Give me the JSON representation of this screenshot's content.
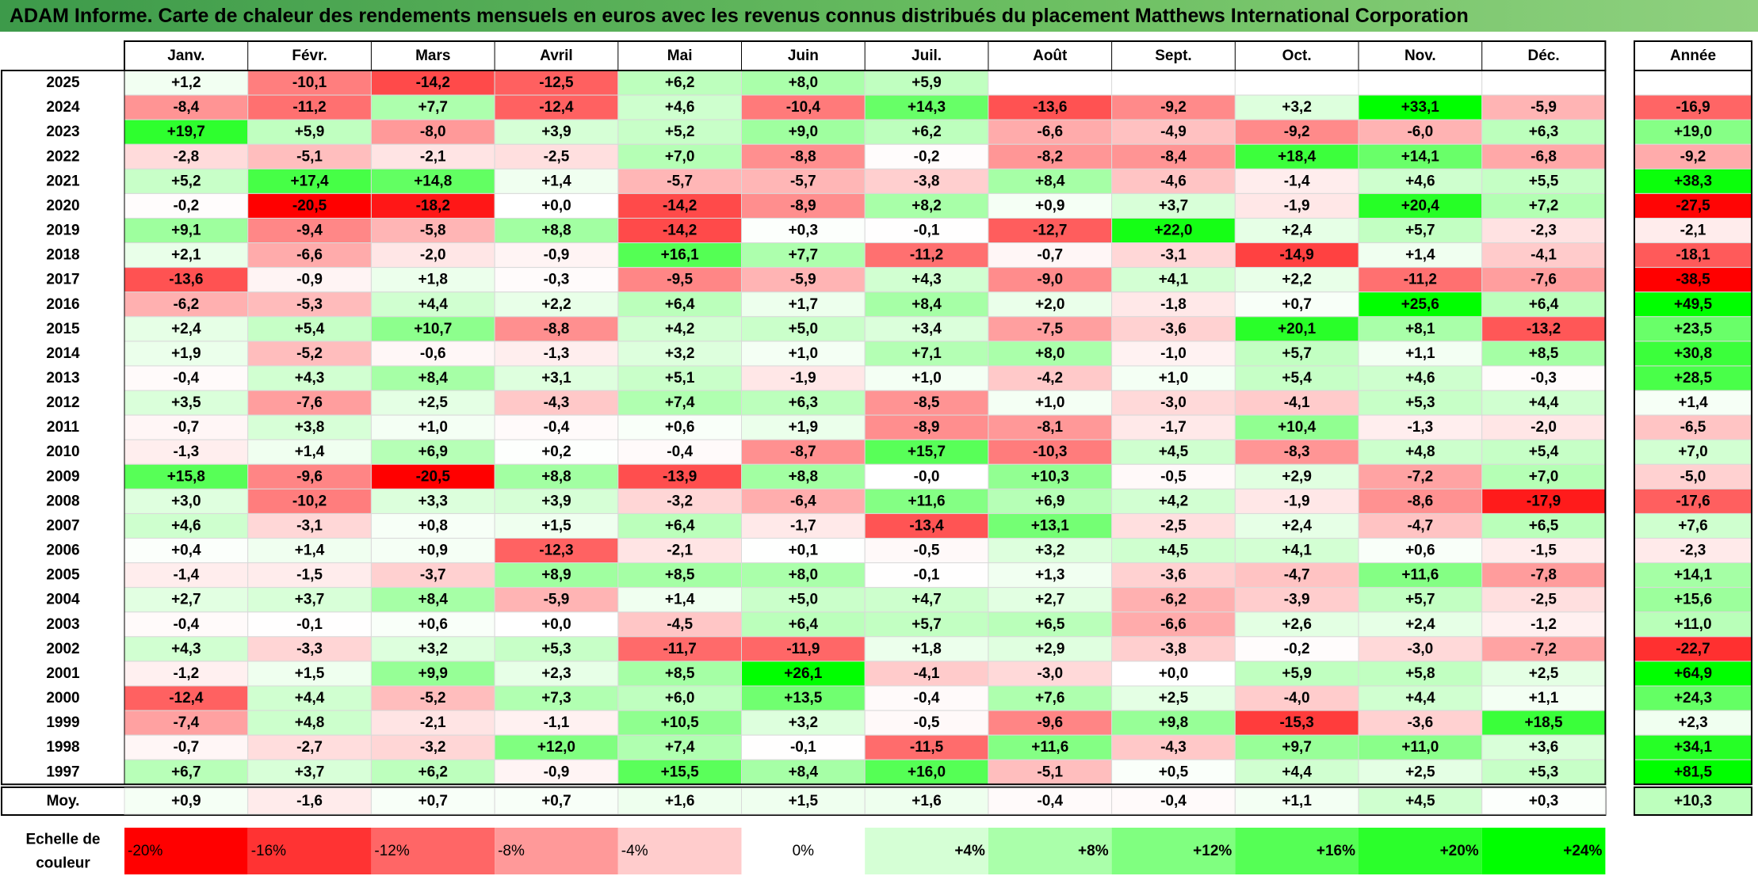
{
  "title": "ADAM Informe. Carte de chaleur des rendements mensuels en euros avec les revenus connus distribués du placement Matthews International Corporation",
  "colors": {
    "title_bar": "#6cbf62",
    "max_green": "#00ff00",
    "max_red": "#ff0000",
    "neutral": "#ffffff"
  },
  "chart_data": {
    "type": "heatmap",
    "columns": [
      "Janv.",
      "Févr.",
      "Mars",
      "Avril",
      "Mai",
      "Juin",
      "Juil.",
      "Août",
      "Sept.",
      "Oct.",
      "Nov.",
      "Déc."
    ],
    "year_column_label": "Année",
    "rows": [
      {
        "label": "2025",
        "values": [
          "+1,2",
          "-10,1",
          "-14,2",
          "-12,5",
          "+6,2",
          "+8,0",
          "+5,9",
          "",
          "",
          "",
          "",
          ""
        ],
        "year": ""
      },
      {
        "label": "2024",
        "values": [
          "-8,4",
          "-11,2",
          "+7,7",
          "-12,4",
          "+4,6",
          "-10,4",
          "+14,3",
          "-13,6",
          "-9,2",
          "+3,2",
          "+33,1",
          "-5,9"
        ],
        "year": "-16,9"
      },
      {
        "label": "2023",
        "values": [
          "+19,7",
          "+5,9",
          "-8,0",
          "+3,9",
          "+5,2",
          "+9,0",
          "+6,2",
          "-6,6",
          "-4,9",
          "-9,2",
          "-6,0",
          "+6,3"
        ],
        "year": "+19,0"
      },
      {
        "label": "2022",
        "values": [
          "-2,8",
          "-5,1",
          "-2,1",
          "-2,5",
          "+7,0",
          "-8,8",
          "-0,2",
          "-8,2",
          "-8,4",
          "+18,4",
          "+14,1",
          "-6,8"
        ],
        "year": "-9,2"
      },
      {
        "label": "2021",
        "values": [
          "+5,2",
          "+17,4",
          "+14,8",
          "+1,4",
          "-5,7",
          "-5,7",
          "-3,8",
          "+8,4",
          "-4,6",
          "-1,4",
          "+4,6",
          "+5,5"
        ],
        "year": "+38,3"
      },
      {
        "label": "2020",
        "values": [
          "-0,2",
          "-20,5",
          "-18,2",
          "+0,0",
          "-14,2",
          "-8,9",
          "+8,2",
          "+0,9",
          "+3,7",
          "-1,9",
          "+20,4",
          "+7,2"
        ],
        "year": "-27,5"
      },
      {
        "label": "2019",
        "values": [
          "+9,1",
          "-9,4",
          "-5,8",
          "+8,8",
          "-14,2",
          "+0,3",
          "-0,1",
          "-12,7",
          "+22,0",
          "+2,4",
          "+5,7",
          "-2,3"
        ],
        "year": "-2,1"
      },
      {
        "label": "2018",
        "values": [
          "+2,1",
          "-6,6",
          "-2,0",
          "-0,9",
          "+16,1",
          "+7,7",
          "-11,2",
          "-0,7",
          "-3,1",
          "-14,9",
          "+1,4",
          "-4,1"
        ],
        "year": "-18,1"
      },
      {
        "label": "2017",
        "values": [
          "-13,6",
          "-0,9",
          "+1,8",
          "-0,3",
          "-9,5",
          "-5,9",
          "+4,3",
          "-9,0",
          "+4,1",
          "+2,2",
          "-11,2",
          "-7,6"
        ],
        "year": "-38,5"
      },
      {
        "label": "2016",
        "values": [
          "-6,2",
          "-5,3",
          "+4,4",
          "+2,2",
          "+6,4",
          "+1,7",
          "+8,4",
          "+2,0",
          "-1,8",
          "+0,7",
          "+25,6",
          "+6,4"
        ],
        "year": "+49,5"
      },
      {
        "label": "2015",
        "values": [
          "+2,4",
          "+5,4",
          "+10,7",
          "-8,8",
          "+4,2",
          "+5,0",
          "+3,4",
          "-7,5",
          "-3,6",
          "+20,1",
          "+8,1",
          "-13,2"
        ],
        "year": "+23,5"
      },
      {
        "label": "2014",
        "values": [
          "+1,9",
          "-5,2",
          "-0,6",
          "-1,3",
          "+3,2",
          "+1,0",
          "+7,1",
          "+8,0",
          "-1,0",
          "+5,7",
          "+1,1",
          "+8,5"
        ],
        "year": "+30,8"
      },
      {
        "label": "2013",
        "values": [
          "-0,4",
          "+4,3",
          "+8,4",
          "+3,1",
          "+5,1",
          "-1,9",
          "+1,0",
          "-4,2",
          "+1,0",
          "+5,4",
          "+4,6",
          "-0,3"
        ],
        "year": "+28,5"
      },
      {
        "label": "2012",
        "values": [
          "+3,5",
          "-7,6",
          "+2,5",
          "-4,3",
          "+7,4",
          "+6,3",
          "-8,5",
          "+1,0",
          "-3,0",
          "-4,1",
          "+5,3",
          "+4,4"
        ],
        "year": "+1,4"
      },
      {
        "label": "2011",
        "values": [
          "-0,7",
          "+3,8",
          "+1,0",
          "-0,4",
          "+0,6",
          "+1,9",
          "-8,9",
          "-8,1",
          "-1,7",
          "+10,4",
          "-1,3",
          "-2,0"
        ],
        "year": "-6,5"
      },
      {
        "label": "2010",
        "values": [
          "-1,3",
          "+1,4",
          "+6,9",
          "+0,2",
          "-0,4",
          "-8,7",
          "+15,7",
          "-10,3",
          "+4,5",
          "-8,3",
          "+4,8",
          "+5,4"
        ],
        "year": "+7,0"
      },
      {
        "label": "2009",
        "values": [
          "+15,8",
          "-9,6",
          "-20,5",
          "+8,8",
          "-13,9",
          "+8,8",
          "-0,0",
          "+10,3",
          "-0,5",
          "+2,9",
          "-7,2",
          "+7,0"
        ],
        "year": "-5,0"
      },
      {
        "label": "2008",
        "values": [
          "+3,0",
          "-10,2",
          "+3,3",
          "+3,9",
          "-3,2",
          "-6,4",
          "+11,6",
          "+6,9",
          "+4,2",
          "-1,9",
          "-8,6",
          "-17,9"
        ],
        "year": "-17,6"
      },
      {
        "label": "2007",
        "values": [
          "+4,6",
          "-3,1",
          "+0,8",
          "+1,5",
          "+6,4",
          "-1,7",
          "-13,4",
          "+13,1",
          "-2,5",
          "+2,4",
          "-4,7",
          "+6,5"
        ],
        "year": "+7,6"
      },
      {
        "label": "2006",
        "values": [
          "+0,4",
          "+1,4",
          "+0,9",
          "-12,3",
          "-2,1",
          "+0,1",
          "-0,5",
          "+3,2",
          "+4,5",
          "+4,1",
          "+0,6",
          "-1,5"
        ],
        "year": "-2,3"
      },
      {
        "label": "2005",
        "values": [
          "-1,4",
          "-1,5",
          "-3,7",
          "+8,9",
          "+8,5",
          "+8,0",
          "-0,1",
          "+1,3",
          "-3,6",
          "-4,7",
          "+11,6",
          "-7,8"
        ],
        "year": "+14,1"
      },
      {
        "label": "2004",
        "values": [
          "+2,7",
          "+3,7",
          "+8,4",
          "-5,9",
          "+1,4",
          "+5,0",
          "+4,7",
          "+2,7",
          "-6,2",
          "-3,9",
          "+5,7",
          "-2,5"
        ],
        "year": "+15,6"
      },
      {
        "label": "2003",
        "values": [
          "-0,4",
          "-0,1",
          "+0,6",
          "+0,0",
          "-4,5",
          "+6,4",
          "+5,7",
          "+6,5",
          "-6,6",
          "+2,6",
          "+2,4",
          "-1,2"
        ],
        "year": "+11,0"
      },
      {
        "label": "2002",
        "values": [
          "+4,3",
          "-3,3",
          "+3,2",
          "+5,3",
          "-11,7",
          "-11,9",
          "+1,8",
          "+2,9",
          "-3,8",
          "-0,2",
          "-3,0",
          "-7,2"
        ],
        "year": "-22,7"
      },
      {
        "label": "2001",
        "values": [
          "-1,2",
          "+1,5",
          "+9,9",
          "+2,3",
          "+8,5",
          "+26,1",
          "-4,1",
          "-3,0",
          "+0,0",
          "+5,9",
          "+5,8",
          "+2,5"
        ],
        "year": "+64,9"
      },
      {
        "label": "2000",
        "values": [
          "-12,4",
          "+4,4",
          "-5,2",
          "+7,3",
          "+6,0",
          "+13,5",
          "-0,4",
          "+7,6",
          "+2,5",
          "-4,0",
          "+4,4",
          "+1,1"
        ],
        "year": "+24,3"
      },
      {
        "label": "1999",
        "values": [
          "-7,4",
          "+4,8",
          "-2,1",
          "-1,1",
          "+10,5",
          "+3,2",
          "-0,5",
          "-9,6",
          "+9,8",
          "-15,3",
          "-3,6",
          "+18,5"
        ],
        "year": "+2,3"
      },
      {
        "label": "1998",
        "values": [
          "-0,7",
          "-2,7",
          "-3,2",
          "+12,0",
          "+7,4",
          "-0,1",
          "-11,5",
          "+11,6",
          "-4,3",
          "+9,7",
          "+11,0",
          "+3,6"
        ],
        "year": "+34,1"
      },
      {
        "label": "1997",
        "values": [
          "+6,7",
          "+3,7",
          "+6,2",
          "-0,9",
          "+15,5",
          "+8,4",
          "+16,0",
          "-5,1",
          "+0,5",
          "+4,4",
          "+2,5",
          "+5,3"
        ],
        "year": "+81,5"
      }
    ],
    "average": {
      "label": "Moy.",
      "values": [
        "+0,9",
        "-1,6",
        "+0,7",
        "+0,7",
        "+1,6",
        "+1,5",
        "+1,6",
        "-0,4",
        "-0,4",
        "+1,1",
        "+4,5",
        "+0,3"
      ],
      "year": "+10,3"
    },
    "scale": {
      "label_line1": "Echelle de",
      "label_line2": "couleur",
      "steps": [
        {
          "label": "-20%",
          "value": -20,
          "align": "left"
        },
        {
          "label": "-16%",
          "value": -16,
          "align": "left"
        },
        {
          "label": "-12%",
          "value": -12,
          "align": "left"
        },
        {
          "label": "-8%",
          "value": -8,
          "align": "left"
        },
        {
          "label": "-4%",
          "value": -4,
          "align": "left"
        },
        {
          "label": "0%",
          "value": 0,
          "align": "center"
        },
        {
          "label": "+4%",
          "value": 4,
          "align": "right"
        },
        {
          "label": "+8%",
          "value": 8,
          "align": "right"
        },
        {
          "label": "+12%",
          "value": 12,
          "align": "right"
        },
        {
          "label": "+16%",
          "value": 16,
          "align": "right"
        },
        {
          "label": "+20%",
          "value": 20,
          "align": "right"
        },
        {
          "label": "+24%",
          "value": 24,
          "align": "right"
        }
      ]
    },
    "legend": "bottom"
  }
}
